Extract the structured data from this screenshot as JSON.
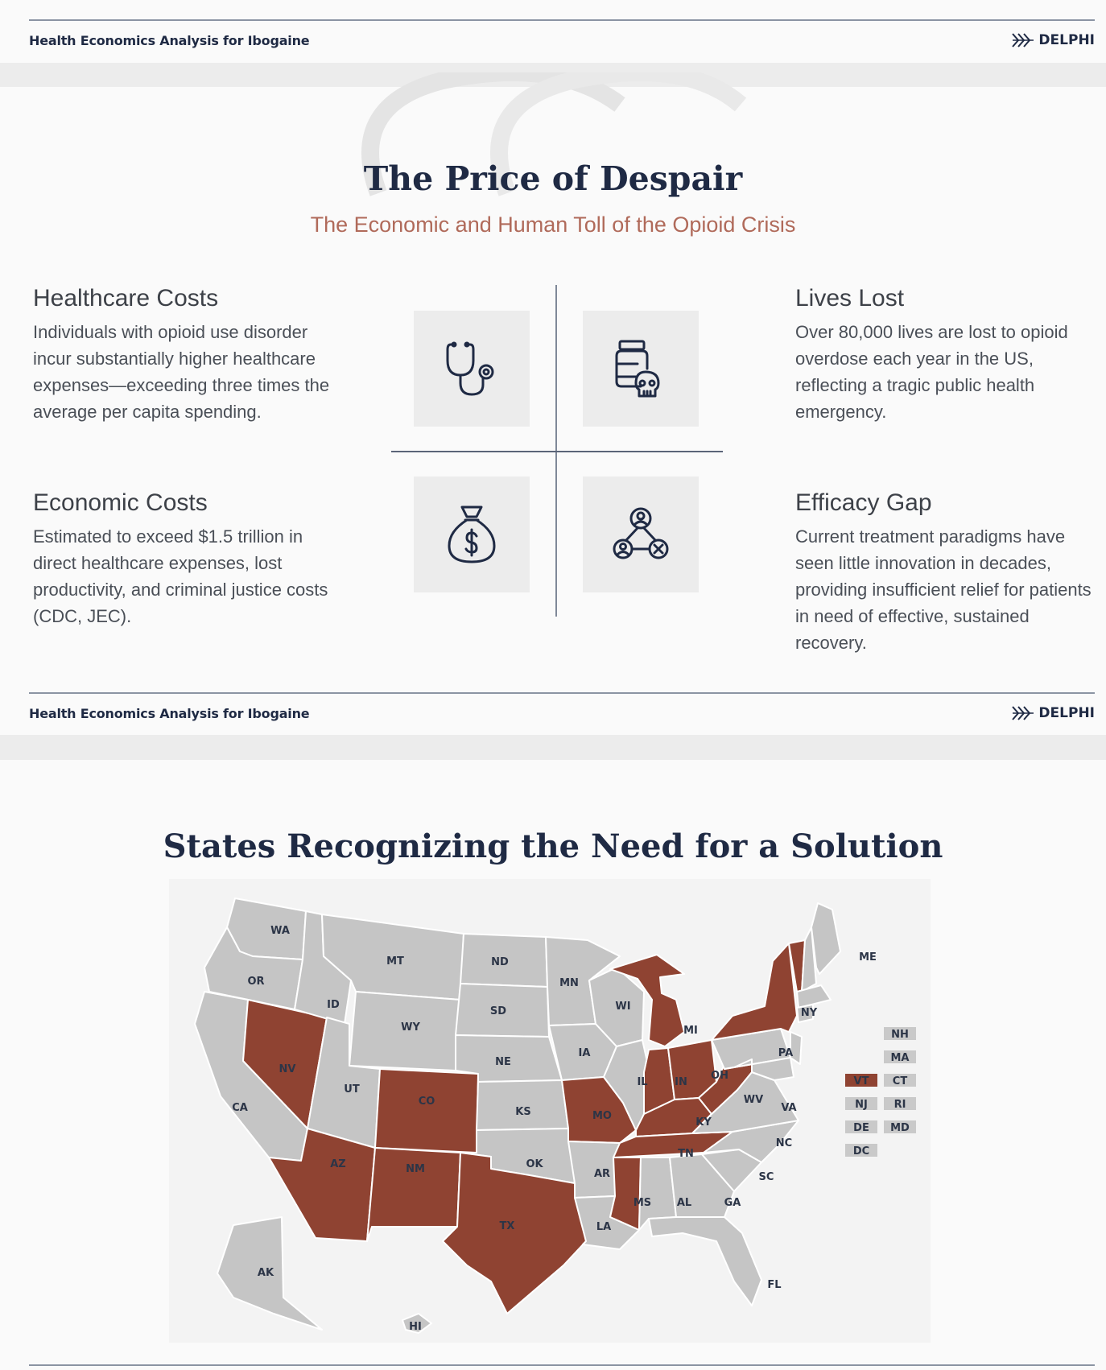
{
  "header": {
    "doc_label": "Health Economics Analysis for Ibogaine",
    "brand": "DELPHI",
    "logo_icon": "chevrons-logo-icon"
  },
  "slide1": {
    "title": "The Price of Despair",
    "subtitle": "The Economic and Human Toll of the Opioid Crisis",
    "blocks": {
      "healthcare": {
        "heading": "Healthcare Costs",
        "text": "Individuals with opioid use disorder incur substantially higher healthcare expenses—exceeding three times the average per capita spending.",
        "icon": "stethoscope-icon"
      },
      "lives": {
        "heading": "Lives Lost",
        "text": "Over 80,000 lives are lost to opioid overdose each year in the US, reflecting a tragic public health emergency.",
        "icon": "medicine-bottle-skull-icon"
      },
      "economic": {
        "heading": "Economic Costs",
        "text": "Estimated to exceed $1.5 trillion in direct healthcare expenses, lost productivity, and criminal justice costs (CDC, JEC).",
        "icon": "money-bag-icon"
      },
      "efficacy": {
        "heading": "Efficacy Gap",
        "text": "Current treatment paradigms have seen little innovation in decades, providing insufficient relief for patients in need of effective, sustained recovery.",
        "icon": "network-people-x-icon"
      }
    },
    "colors": {
      "accent": "#b06a5a",
      "navy": "#1f2a44"
    }
  },
  "slide2": {
    "title": "States Recognizing the Need for a Solution",
    "colors": {
      "highlighted": "#8f4332",
      "other": "#c5c5c5"
    },
    "states": {
      "WA": "WA",
      "OR": "OR",
      "CA": "CA",
      "NV": "NV",
      "ID": "ID",
      "MT": "MT",
      "WY": "WY",
      "UT": "UT",
      "AZ": "AZ",
      "CO": "CO",
      "NM": "NM",
      "ND": "ND",
      "SD": "SD",
      "NE": "NE",
      "KS": "KS",
      "OK": "OK",
      "TX": "TX",
      "MN": "MN",
      "IA": "IA",
      "MO": "MO",
      "AR": "AR",
      "LA": "LA",
      "WI": "WI",
      "IL": "IL",
      "MI": "MI",
      "IN": "IN",
      "OH": "OH",
      "KY": "KY",
      "TN": "TN",
      "MS": "MS",
      "AL": "AL",
      "GA": "GA",
      "FL": "FL",
      "SC": "SC",
      "NC": "NC",
      "VA": "VA",
      "WV": "WV",
      "PA": "PA",
      "NY": "NY",
      "ME": "ME",
      "AK": "AK",
      "HI": "HI"
    },
    "highlighted_states": [
      "NV",
      "AZ",
      "CO",
      "NM",
      "TX",
      "MO",
      "MS",
      "TN",
      "KY",
      "IN",
      "MI",
      "OH",
      "WV",
      "NY",
      "VT"
    ],
    "small_states": {
      "NH": "NH",
      "MA": "MA",
      "VT": "VT",
      "CT": "CT",
      "NJ": "NJ",
      "RI": "RI",
      "DE": "DE",
      "MD": "MD",
      "DC": "DC"
    }
  }
}
